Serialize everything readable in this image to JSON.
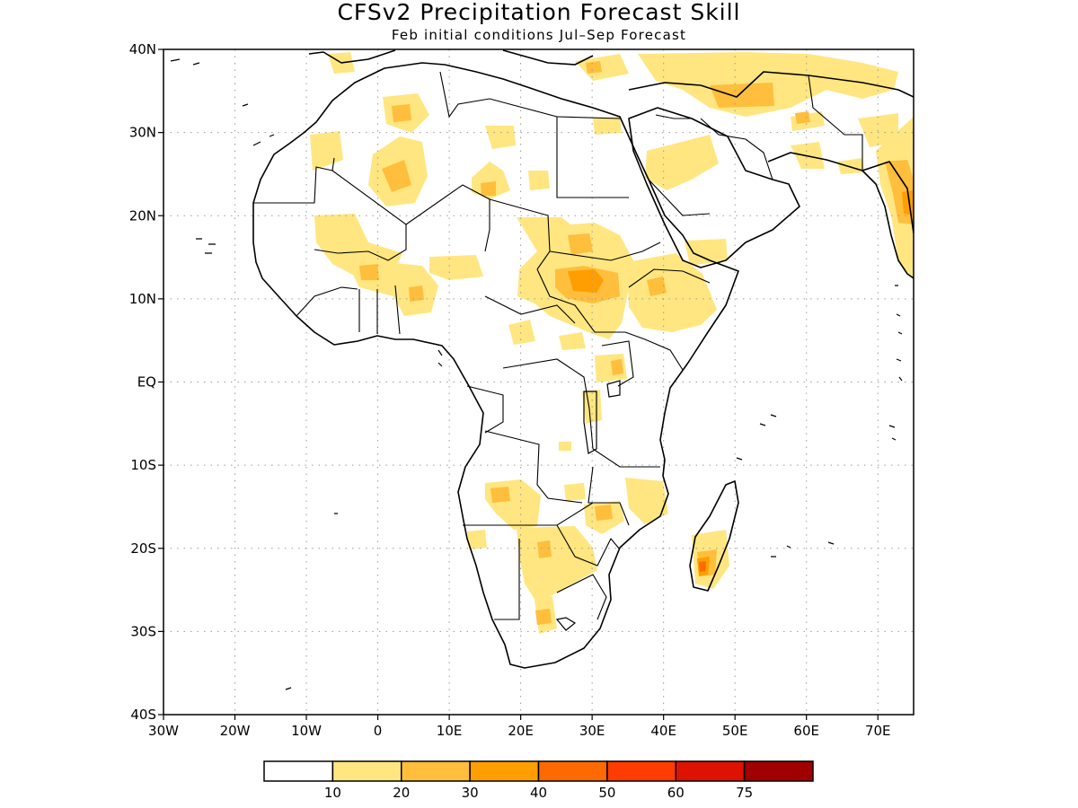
{
  "title": "CFSv2 Precipitation Forecast Skill",
  "subtitle": "Feb initial conditions  Jul–Sep Forecast",
  "map": {
    "lon_range": [
      -30,
      75
    ],
    "lat_range": [
      -40,
      40
    ],
    "lon_ticks": [
      {
        "value": -30,
        "label": "30W"
      },
      {
        "value": -20,
        "label": "20W"
      },
      {
        "value": -10,
        "label": "10W"
      },
      {
        "value": 0,
        "label": "0"
      },
      {
        "value": 10,
        "label": "10E"
      },
      {
        "value": 20,
        "label": "20E"
      },
      {
        "value": 30,
        "label": "30E"
      },
      {
        "value": 40,
        "label": "40E"
      },
      {
        "value": 50,
        "label": "50E"
      },
      {
        "value": 60,
        "label": "60E"
      },
      {
        "value": 70,
        "label": "70E"
      }
    ],
    "lat_ticks": [
      {
        "value": 40,
        "label": "40N"
      },
      {
        "value": 30,
        "label": "30N"
      },
      {
        "value": 20,
        "label": "20N"
      },
      {
        "value": 10,
        "label": "10N"
      },
      {
        "value": 0,
        "label": "EQ"
      },
      {
        "value": -10,
        "label": "10S"
      },
      {
        "value": -20,
        "label": "20S"
      },
      {
        "value": -30,
        "label": "30S"
      },
      {
        "value": -40,
        "label": "40S"
      }
    ],
    "gridlines": true
  },
  "colorbar": {
    "colors": [
      "#ffffff",
      "#ffe680",
      "#ffbe3c",
      "#ff9e00",
      "#ff6a00",
      "#ff3c00",
      "#dd1200",
      "#a00000"
    ],
    "labels": [
      "10",
      "20",
      "30",
      "40",
      "50",
      "60",
      "75"
    ]
  },
  "colors": {
    "level_10_20": "#ffe680",
    "level_20_30": "#ffbe3c",
    "level_30_40": "#ff9e00",
    "level_40_50": "#ff6a00"
  }
}
